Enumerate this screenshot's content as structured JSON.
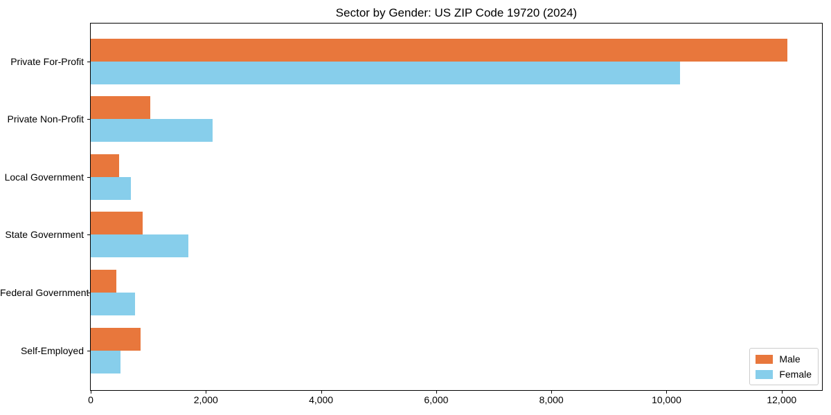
{
  "chart_data": {
    "type": "bar",
    "orientation": "horizontal",
    "title": "Sector by Gender: US ZIP Code 19720 (2024)",
    "categories": [
      "Private For-Profit",
      "Private Non-Profit",
      "Local Government",
      "State Government",
      "Federal Government",
      "Self-Employed"
    ],
    "series": [
      {
        "name": "Male",
        "color": "#e8773c",
        "values": [
          12100,
          1030,
          490,
          900,
          450,
          870
        ]
      },
      {
        "name": "Female",
        "color": "#87ceeb",
        "values": [
          10230,
          2120,
          700,
          1700,
          770,
          520
        ]
      }
    ],
    "xlabel": "",
    "ylabel": "",
    "xlim": [
      0,
      12700
    ],
    "x_ticks": [
      0,
      2000,
      4000,
      6000,
      8000,
      10000,
      12000
    ],
    "x_tick_labels": [
      "0",
      "2,000",
      "4,000",
      "6,000",
      "8,000",
      "10,000",
      "12,000"
    ],
    "grid": false,
    "legend_position": "lower right",
    "plot_background": "#ffffff",
    "spine_color": "#000000"
  }
}
